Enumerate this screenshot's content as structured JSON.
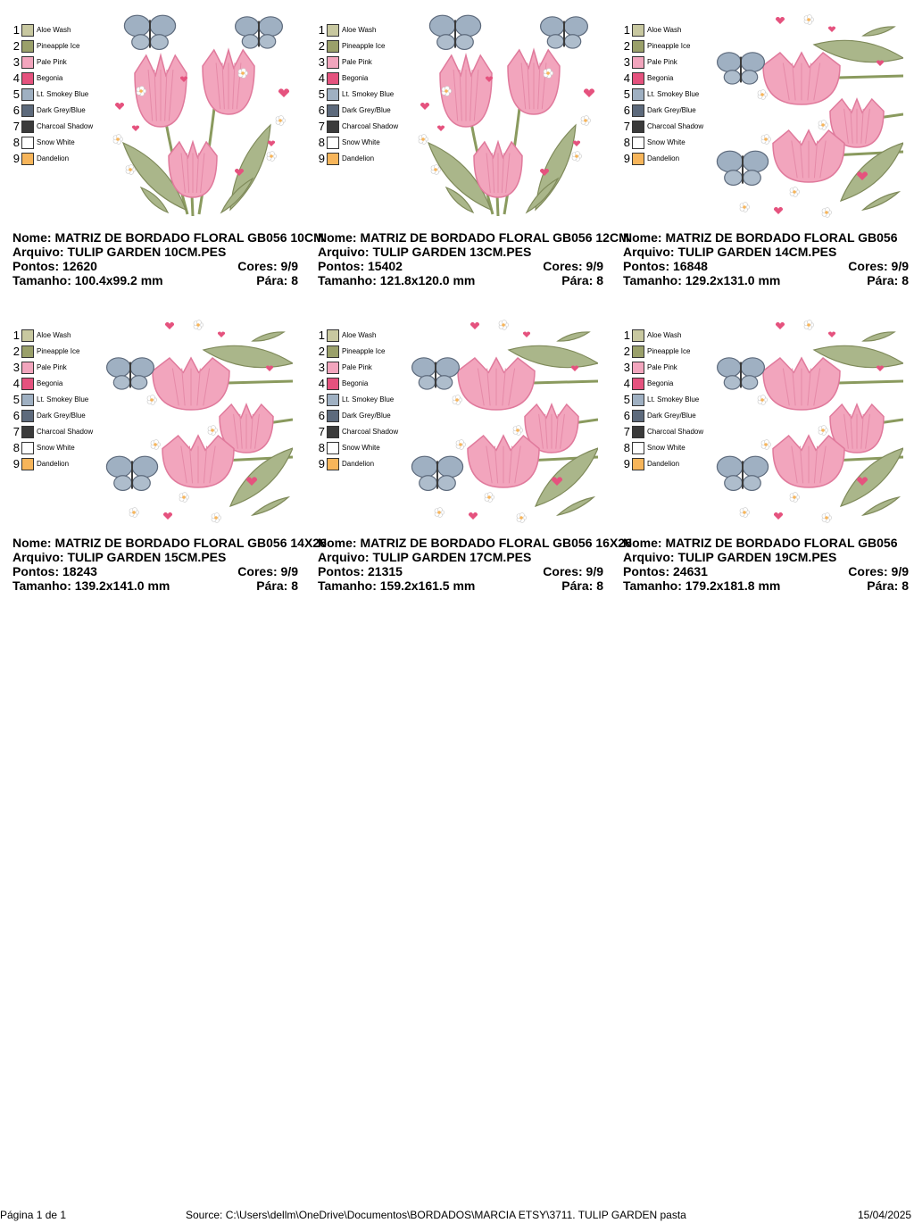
{
  "designs": [
    {
      "nome": "Nome: MATRIZ DE BORDADO FLORAL GB056 10CM",
      "arquivo": "Arquivo: TULIP GARDEN 10CM.PES",
      "pontos": "Pontos: 12620",
      "cores": "Cores: 9/9",
      "tamanho": "Tamanho: 100.4x99.2 mm",
      "para": "Pára: 8",
      "orientation": "upright"
    },
    {
      "nome": "Nome: MATRIZ DE BORDADO FLORAL GB056 12CM",
      "arquivo": "Arquivo: TULIP GARDEN 13CM.PES",
      "pontos": "Pontos: 15402",
      "cores": "Cores: 9/9",
      "tamanho": "Tamanho: 121.8x120.0 mm",
      "para": "Pára: 8",
      "orientation": "upright"
    },
    {
      "nome": "Nome: MATRIZ DE BORDADO FLORAL GB056",
      "arquivo": "Arquivo: TULIP GARDEN 14CM.PES",
      "pontos": "Pontos: 16848",
      "cores": "Cores: 9/9",
      "tamanho": "Tamanho: 129.2x131.0 mm",
      "para": "Pára: 8",
      "orientation": "sideways"
    },
    {
      "nome": "Nome: MATRIZ DE BORDADO FLORAL GB056 14X26",
      "arquivo": "Arquivo: TULIP GARDEN 15CM.PES",
      "pontos": "Pontos: 18243",
      "cores": "Cores: 9/9",
      "tamanho": "Tamanho: 139.2x141.0 mm",
      "para": "Pára: 8",
      "orientation": "sideways"
    },
    {
      "nome": "Nome: MATRIZ DE BORDADO FLORAL GB056 16X26",
      "arquivo": "Arquivo: TULIP GARDEN 17CM.PES",
      "pontos": "Pontos: 21315",
      "cores": "Cores: 9/9",
      "tamanho": "Tamanho: 159.2x161.5 mm",
      "para": "Pára: 8",
      "orientation": "sideways"
    },
    {
      "nome": "Nome: MATRIZ DE BORDADO FLORAL GB056",
      "arquivo": "Arquivo: TULIP GARDEN 19CM.PES",
      "pontos": "Pontos: 24631",
      "cores": "Cores: 9/9",
      "tamanho": "Tamanho: 179.2x181.8 mm",
      "para": "Pára: 8",
      "orientation": "sideways"
    }
  ],
  "thread_colors": [
    {
      "num": "1",
      "name": "Aloe Wash",
      "color": "#c8c8a0"
    },
    {
      "num": "2",
      "name": "Pineapple Ice",
      "color": "#9aa06a"
    },
    {
      "num": "3",
      "name": "Pale Pink",
      "color": "#f2a5bd"
    },
    {
      "num": "4",
      "name": "Begonia",
      "color": "#e5527e"
    },
    {
      "num": "5",
      "name": "Lt. Smokey Blue",
      "color": "#9fb0c2"
    },
    {
      "num": "6",
      "name": "Dark Grey/Blue",
      "color": "#5d6a7c"
    },
    {
      "num": "7",
      "name": "Charcoal Shadow",
      "color": "#3b3b3b"
    },
    {
      "num": "8",
      "name": "Snow White",
      "color": "#ffffff"
    },
    {
      "num": "9",
      "name": "Dandelion",
      "color": "#f7b55a"
    }
  ],
  "footer": {
    "page": "Página 1 de 1",
    "source": "Source: C:\\Users\\dellm\\OneDrive\\Documentos\\BORDADOS\\MARCIA ETSY\\3711. TULIP GARDEN pasta",
    "date": "15/04/2025"
  }
}
